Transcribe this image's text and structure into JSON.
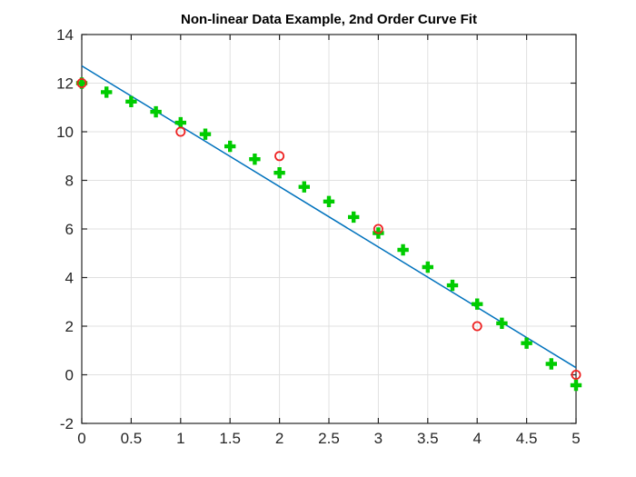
{
  "figure": {
    "background": "#ffffff"
  },
  "chart_data": {
    "type": "scatter",
    "title": "Non-linear Data Example, 2nd Order Curve Fit",
    "xlabel": "",
    "ylabel": "",
    "xlim": [
      0,
      5
    ],
    "ylim": [
      -2,
      14
    ],
    "x_tick_labels": [
      "0",
      "0.5",
      "1",
      "1.5",
      "2",
      "2.5",
      "3",
      "3.5",
      "4",
      "4.5",
      "5"
    ],
    "y_tick_labels": [
      "-2",
      "0",
      "2",
      "4",
      "6",
      "8",
      "10",
      "12",
      "14"
    ],
    "grid": true,
    "legend": "none",
    "axis_color": "#262626",
    "grid_color": "#e0e0e0",
    "series": [
      {
        "name": "linear-fit-line",
        "type": "line",
        "color": "#0072bd",
        "x": [
          0,
          5
        ],
        "y": [
          12.71,
          0.29
        ]
      },
      {
        "name": "second-order-fit-points",
        "type": "scatter",
        "marker": "plus",
        "color": "#00cc00",
        "x": [
          0,
          0.25,
          0.5,
          0.75,
          1,
          1.25,
          1.5,
          1.75,
          2,
          2.25,
          2.5,
          2.75,
          3,
          3.25,
          3.5,
          3.75,
          4,
          4.25,
          4.5,
          4.75,
          5
        ],
        "y": [
          12,
          11.63,
          11.24,
          10.82,
          10.37,
          9.9,
          9.4,
          8.87,
          8.31,
          7.73,
          7.13,
          6.49,
          5.83,
          5.14,
          4.43,
          3.68,
          2.91,
          2.12,
          1.3,
          0.45,
          -0.43
        ]
      },
      {
        "name": "data-points",
        "type": "scatter",
        "marker": "circle",
        "color": "#ee2222",
        "x": [
          0,
          1,
          2,
          3,
          4,
          5
        ],
        "y": [
          12,
          10,
          9,
          6,
          2,
          0
        ]
      }
    ]
  }
}
